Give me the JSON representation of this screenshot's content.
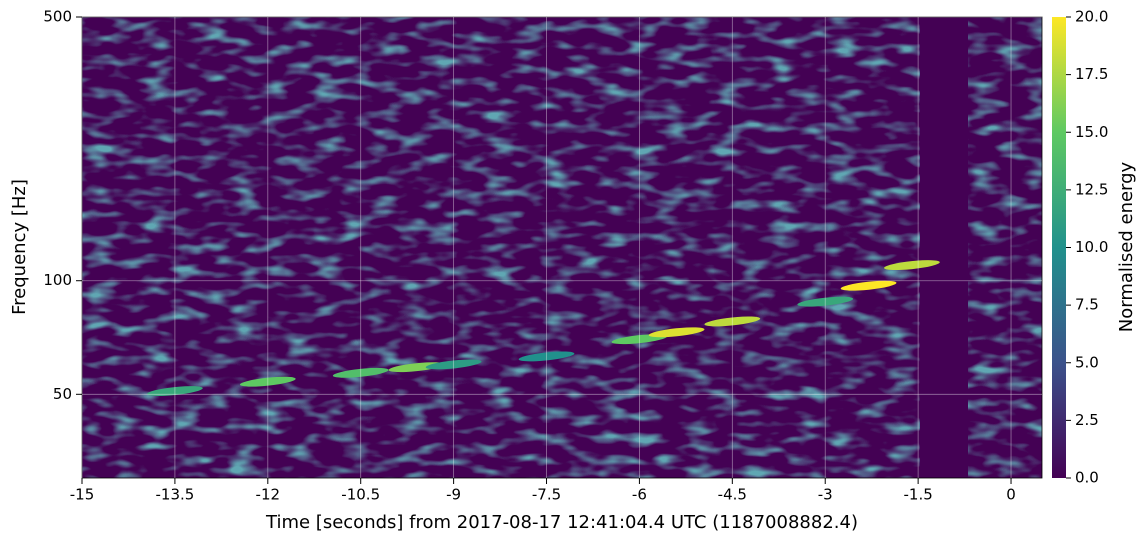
{
  "chart_data": {
    "type": "spectrogram",
    "xlabel": "Time [seconds] from 2017-08-17 12:41:04.4 UTC (1187008882.4)",
    "ylabel": "Frequency [Hz]",
    "colorbar_label": "Normalised energy",
    "xlim": [
      -15,
      0.5
    ],
    "xticks": [
      -15,
      -13.5,
      -12,
      -10.5,
      -9,
      -7.5,
      -6,
      -4.5,
      -3,
      -1.5,
      0
    ],
    "ylim": [
      30,
      500
    ],
    "yticks": [
      50,
      100,
      500
    ],
    "log_y": true,
    "grid": true,
    "clim": [
      0,
      20
    ],
    "cticks": [
      {
        "value": 0,
        "label": "0.0"
      },
      {
        "value": 2.5,
        "label": "2.5"
      },
      {
        "value": 5,
        "label": "5.0"
      },
      {
        "value": 7.5,
        "label": "7.5"
      },
      {
        "value": 10,
        "label": "10.0"
      },
      {
        "value": 12.5,
        "label": "12.5"
      },
      {
        "value": 15,
        "label": "15.0"
      },
      {
        "value": 17.5,
        "label": "17.5"
      },
      {
        "value": 20,
        "label": "20.0"
      }
    ],
    "colormap": "viridis",
    "track": {
      "x": [
        -13.5,
        -12,
        -10.5,
        -9.6,
        -9,
        -7.5,
        -6,
        -5.4,
        -4.5,
        -3,
        -2.3,
        -1.6
      ],
      "y": [
        51,
        54,
        57,
        59,
        60,
        63,
        70,
        73,
        78,
        88,
        97,
        110
      ],
      "values": [
        12,
        15,
        14,
        16,
        11,
        10,
        15,
        19,
        18,
        12,
        20,
        18
      ]
    }
  }
}
